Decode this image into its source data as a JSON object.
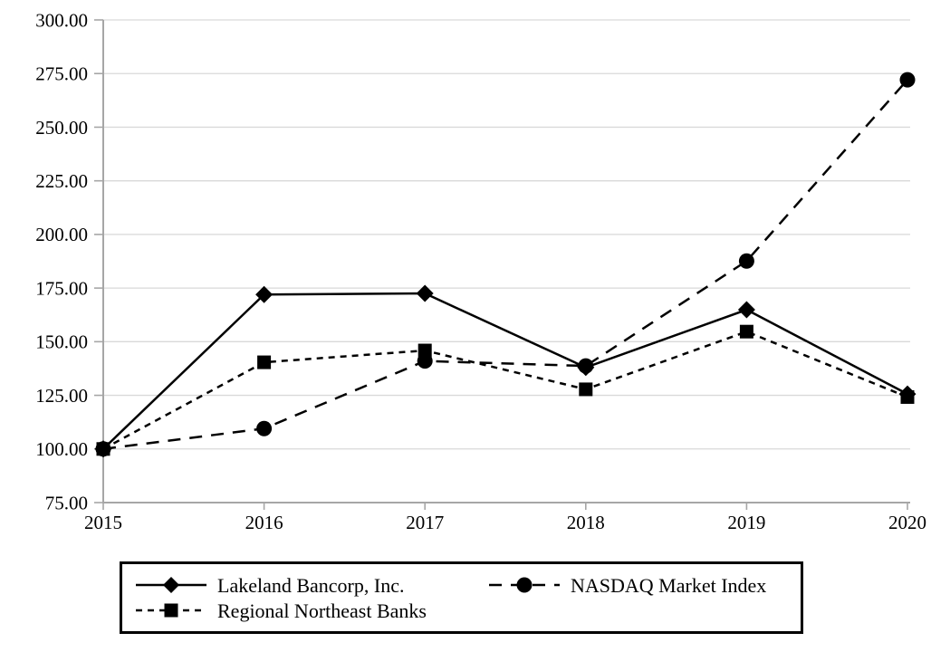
{
  "chart_data": {
    "type": "line",
    "title": "",
    "xlabel": "",
    "ylabel": "",
    "x": [
      "2015",
      "2016",
      "2017",
      "2018",
      "2019",
      "2020"
    ],
    "xtick_labels": [
      "2015",
      "2016",
      "2017",
      "2018",
      "2019",
      "2020"
    ],
    "ytick_labels": [
      "300.00",
      "275.00",
      "250.00",
      "225.00",
      "200.00",
      "175.00",
      "150.00",
      "125.00",
      "100.00",
      "75.00"
    ],
    "ylim": [
      75,
      300
    ],
    "ytick_step": 25,
    "grid": "horizontal-only",
    "legend_position": "bottom-boxed",
    "series": [
      {
        "name": "Lakeland Bancorp, Inc.",
        "marker": "diamond",
        "line": "solid",
        "values": [
          100.0,
          172.0,
          172.5,
          138.0,
          164.9,
          125.6
        ]
      },
      {
        "name": "NASDAQ Market Index",
        "marker": "circle",
        "line": "long-dash",
        "values": [
          100.0,
          109.5,
          141.0,
          138.7,
          187.6,
          272.1
        ]
      },
      {
        "name": "Regional Northeast Banks",
        "marker": "square",
        "line": "short-dash",
        "values": [
          100.0,
          140.4,
          145.9,
          127.8,
          154.7,
          124.2
        ]
      }
    ],
    "colors": {
      "series": "#000000",
      "axis": "#a6a6a6",
      "gridline": "#d9d9d9",
      "text": "#000000",
      "background": "#ffffff"
    }
  }
}
